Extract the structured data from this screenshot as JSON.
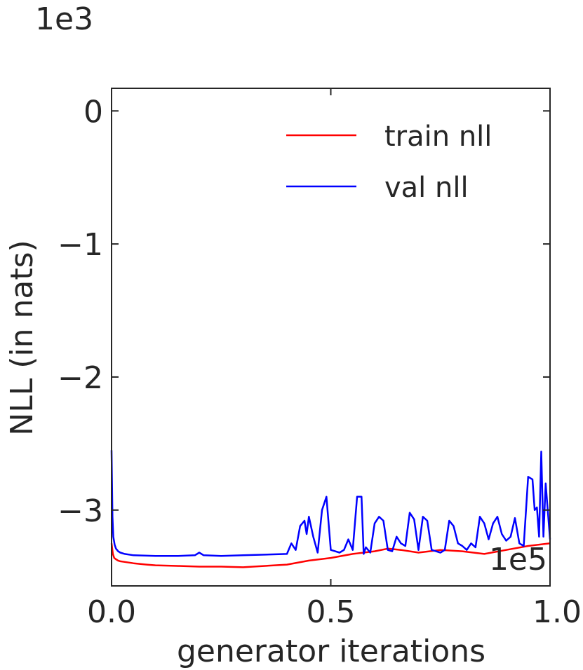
{
  "chart_data": {
    "type": "line",
    "title": "",
    "xlabel": "generator iterations",
    "ylabel": "NLL (in nats)",
    "x_offset_text": "1e5",
    "y_offset_text": "1e3",
    "xlim": [
      0.0,
      1.0
    ],
    "ylim": [
      -3.57,
      0.17
    ],
    "xticks": [
      0.0,
      0.5,
      1.0
    ],
    "xtick_labels": [
      "0.0",
      "0.5",
      "1.0"
    ],
    "yticks": [
      0,
      -1,
      -2,
      -3
    ],
    "ytick_labels": [
      "0",
      "−1",
      "−2",
      "−3"
    ],
    "grid": false,
    "legend_position": "upper-right",
    "series": [
      {
        "name": "train nll",
        "color": "#ff0000",
        "x": [
          0.0,
          0.003,
          0.006,
          0.01,
          0.015,
          0.02,
          0.03,
          0.05,
          0.08,
          0.1,
          0.15,
          0.2,
          0.25,
          0.3,
          0.35,
          0.4,
          0.45,
          0.5,
          0.55,
          0.6,
          0.63,
          0.66,
          0.7,
          0.75,
          0.8,
          0.85,
          0.9,
          0.95,
          1.0
        ],
        "y": [
          -3.25,
          -3.33,
          -3.36,
          -3.37,
          -3.38,
          -3.385,
          -3.39,
          -3.4,
          -3.41,
          -3.415,
          -3.42,
          -3.425,
          -3.425,
          -3.43,
          -3.42,
          -3.41,
          -3.38,
          -3.36,
          -3.33,
          -3.31,
          -3.29,
          -3.3,
          -3.32,
          -3.3,
          -3.31,
          -3.33,
          -3.3,
          -3.27,
          -3.25
        ]
      },
      {
        "name": "val nll",
        "color": "#0000ff",
        "x": [
          0.0,
          0.002,
          0.004,
          0.007,
          0.01,
          0.015,
          0.02,
          0.03,
          0.05,
          0.1,
          0.15,
          0.19,
          0.2,
          0.21,
          0.25,
          0.3,
          0.35,
          0.4,
          0.41,
          0.42,
          0.43,
          0.44,
          0.445,
          0.45,
          0.46,
          0.47,
          0.48,
          0.49,
          0.5,
          0.51,
          0.52,
          0.53,
          0.54,
          0.55,
          0.56,
          0.57,
          0.575,
          0.58,
          0.59,
          0.6,
          0.61,
          0.62,
          0.63,
          0.64,
          0.65,
          0.66,
          0.67,
          0.68,
          0.69,
          0.7,
          0.71,
          0.72,
          0.73,
          0.74,
          0.75,
          0.76,
          0.77,
          0.78,
          0.79,
          0.8,
          0.81,
          0.82,
          0.83,
          0.84,
          0.85,
          0.86,
          0.87,
          0.88,
          0.89,
          0.9,
          0.91,
          0.92,
          0.93,
          0.94,
          0.95,
          0.96,
          0.965,
          0.97,
          0.975,
          0.98,
          0.985,
          0.99,
          1.0
        ],
        "y": [
          -2.55,
          -3.05,
          -3.2,
          -3.26,
          -3.29,
          -3.31,
          -3.32,
          -3.33,
          -3.34,
          -3.345,
          -3.345,
          -3.34,
          -3.32,
          -3.34,
          -3.345,
          -3.34,
          -3.335,
          -3.33,
          -3.25,
          -3.3,
          -3.12,
          -3.08,
          -3.18,
          -3.05,
          -3.2,
          -3.32,
          -3.0,
          -2.9,
          -3.3,
          -3.31,
          -3.32,
          -3.3,
          -3.22,
          -3.3,
          -2.9,
          -2.9,
          -3.33,
          -3.28,
          -3.32,
          -3.1,
          -3.05,
          -3.08,
          -3.3,
          -3.31,
          -3.2,
          -3.25,
          -3.27,
          -3.02,
          -3.07,
          -3.3,
          -3.05,
          -3.08,
          -3.3,
          -3.31,
          -3.32,
          -3.3,
          -3.08,
          -3.12,
          -3.25,
          -3.27,
          -3.3,
          -3.25,
          -3.28,
          -3.05,
          -3.1,
          -3.22,
          -3.1,
          -3.05,
          -3.18,
          -3.23,
          -3.2,
          -3.06,
          -3.25,
          -3.27,
          -2.75,
          -2.77,
          -3.0,
          -2.98,
          -3.2,
          -2.56,
          -3.2,
          -2.8,
          -3.22
        ]
      }
    ]
  }
}
